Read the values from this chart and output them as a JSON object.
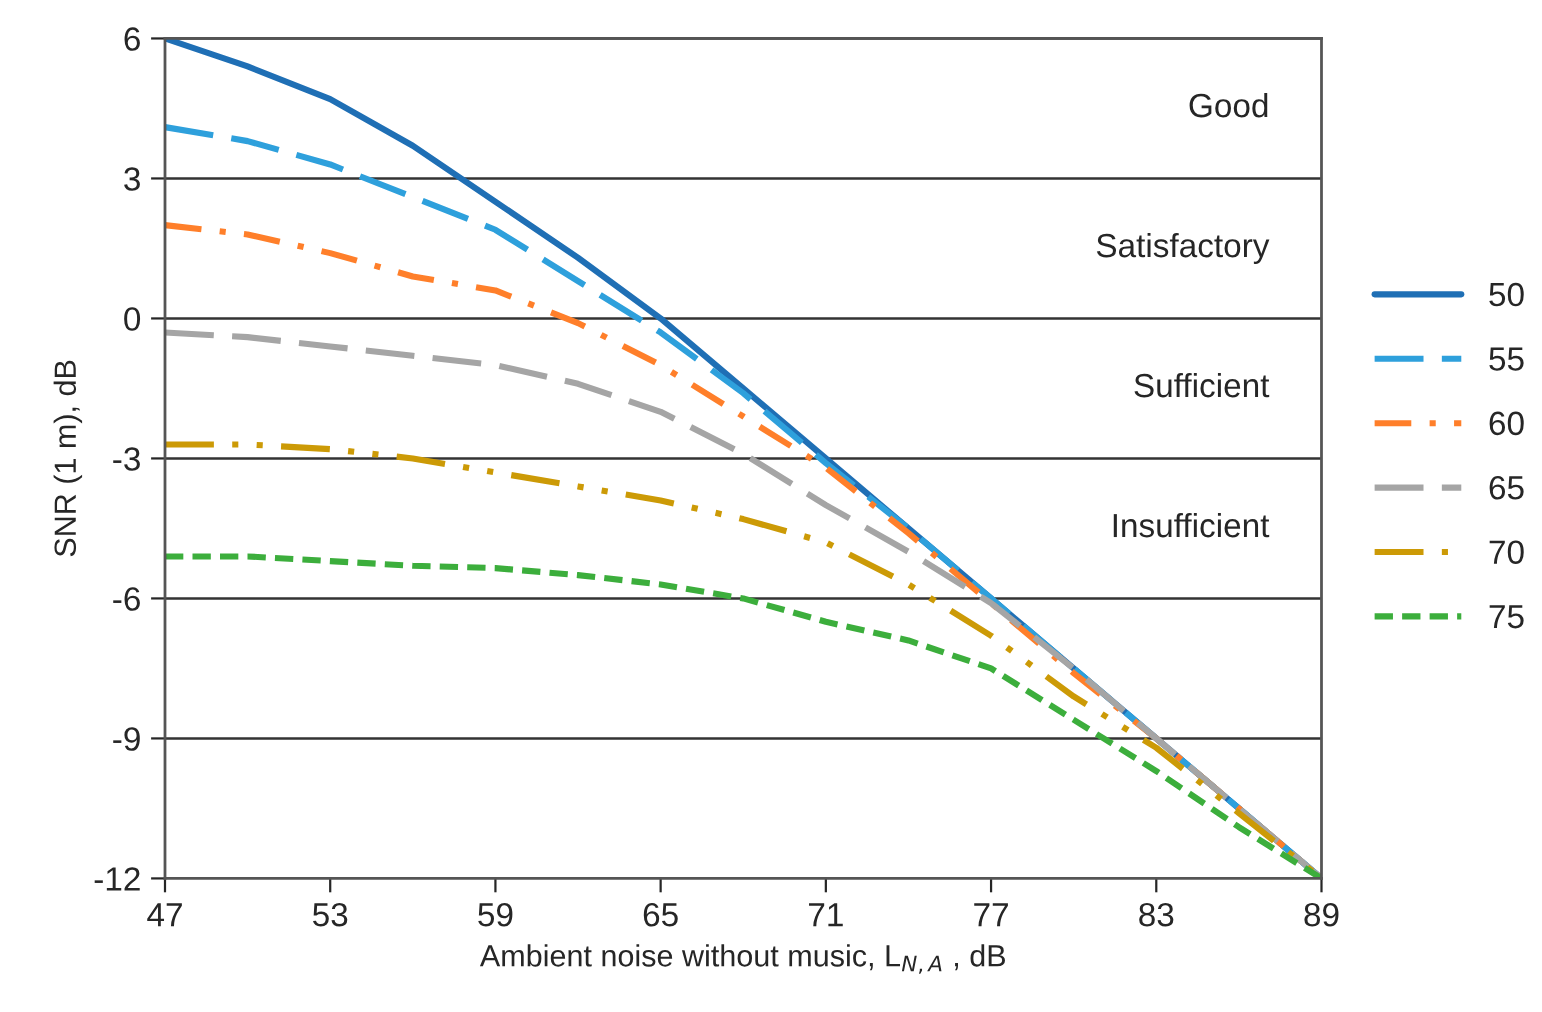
{
  "chart_data": {
    "type": "line",
    "xlabel": "Ambient noise without music, L$_{N,A}$ , dB",
    "ylabel": "SNR (1 m), dB",
    "x": [
      47,
      50,
      53,
      56,
      59,
      62,
      65,
      68,
      71,
      74,
      77,
      80,
      83,
      86,
      89
    ],
    "series": [
      {
        "name": "50",
        "color": "#1f6fb5",
        "line_style": "solid",
        "values": [
          6.0,
          5.4,
          4.7,
          3.7,
          2.5,
          1.3,
          0.0,
          -1.5,
          -3.0,
          -4.5,
          -6.0,
          -7.5,
          -9.0,
          -10.5,
          -12.0
        ]
      },
      {
        "name": "55",
        "color": "#2ea0dc",
        "line_style": "dashed",
        "values": [
          4.1,
          3.8,
          3.3,
          2.6,
          1.9,
          0.8,
          -0.3,
          -1.6,
          -3.1,
          -4.5,
          -6.0,
          -7.5,
          -9.0,
          -10.5,
          -12.0
        ]
      },
      {
        "name": "60",
        "color": "#ff7f2a",
        "line_style": "dashdot",
        "values": [
          2.0,
          1.8,
          1.4,
          0.9,
          0.6,
          -0.1,
          -1.0,
          -2.1,
          -3.2,
          -4.6,
          -6.1,
          -7.6,
          -9.0,
          -10.5,
          -12.0
        ]
      },
      {
        "name": "65",
        "color": "#a5a5a5",
        "line_style": "dashed",
        "values": [
          -0.3,
          -0.4,
          -0.6,
          -0.8,
          -1.0,
          -1.4,
          -2.0,
          -2.9,
          -4.0,
          -5.0,
          -6.1,
          -7.5,
          -9.0,
          -10.5,
          -12.0
        ]
      },
      {
        "name": "70",
        "color": "#cc9a06",
        "line_style": "dashdotdot",
        "values": [
          -2.7,
          -2.7,
          -2.8,
          -3.0,
          -3.3,
          -3.6,
          -3.9,
          -4.3,
          -4.8,
          -5.7,
          -6.8,
          -8.1,
          -9.2,
          -10.6,
          -12.0
        ]
      },
      {
        "name": "75",
        "color": "#3cae3c",
        "line_style": "dotted",
        "values": [
          -5.1,
          -5.1,
          -5.2,
          -5.3,
          -5.35,
          -5.5,
          -5.7,
          -6.0,
          -6.5,
          -6.9,
          -7.5,
          -8.6,
          -9.7,
          -10.9,
          -12.0
        ]
      }
    ],
    "xlim": [
      47,
      89
    ],
    "xticks": [
      47,
      53,
      59,
      65,
      71,
      77,
      83,
      89
    ],
    "ylim": [
      -12,
      6
    ],
    "yticks": [
      -12,
      -9,
      -6,
      -3,
      0,
      3,
      6
    ],
    "annotations": [
      "Good",
      "Satisfactory",
      "Sufficient",
      "Insufficient"
    ],
    "grid": "y",
    "legend": "right"
  }
}
